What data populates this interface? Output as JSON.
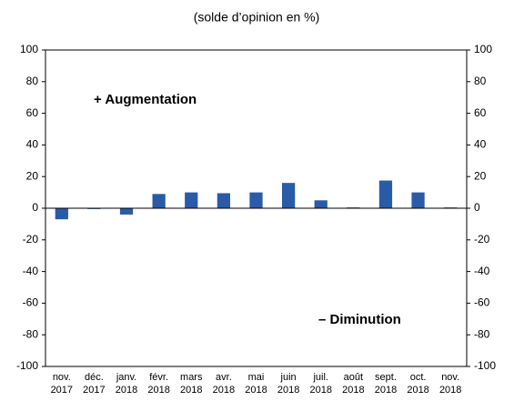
{
  "chart_data": {
    "type": "bar",
    "title": "(solde d’opinion en %)",
    "annotations": [
      "+ Augmentation",
      "– Diminution"
    ],
    "categories": [
      [
        "nov.",
        "2017"
      ],
      [
        "déc.",
        "2017"
      ],
      [
        "janv.",
        "2018"
      ],
      [
        "févr.",
        "2018"
      ],
      [
        "mars",
        "2018"
      ],
      [
        "avr.",
        "2018"
      ],
      [
        "mai",
        "2018"
      ],
      [
        "juin",
        "2018"
      ],
      [
        "juil.",
        "2018"
      ],
      [
        "août",
        "2018"
      ],
      [
        "sept.",
        "2018"
      ],
      [
        "oct.",
        "2018"
      ],
      [
        "nov.",
        "2018"
      ]
    ],
    "values": [
      -7,
      -0.5,
      -4,
      9,
      10,
      9.5,
      10,
      16,
      5,
      0.5,
      17.5,
      10,
      0.5
    ],
    "color": "#2a5ba8",
    "ylim": [
      -100,
      100
    ],
    "yticks": [
      -100,
      -80,
      -60,
      -40,
      -20,
      0,
      20,
      40,
      60,
      80,
      100
    ],
    "grid": false
  }
}
